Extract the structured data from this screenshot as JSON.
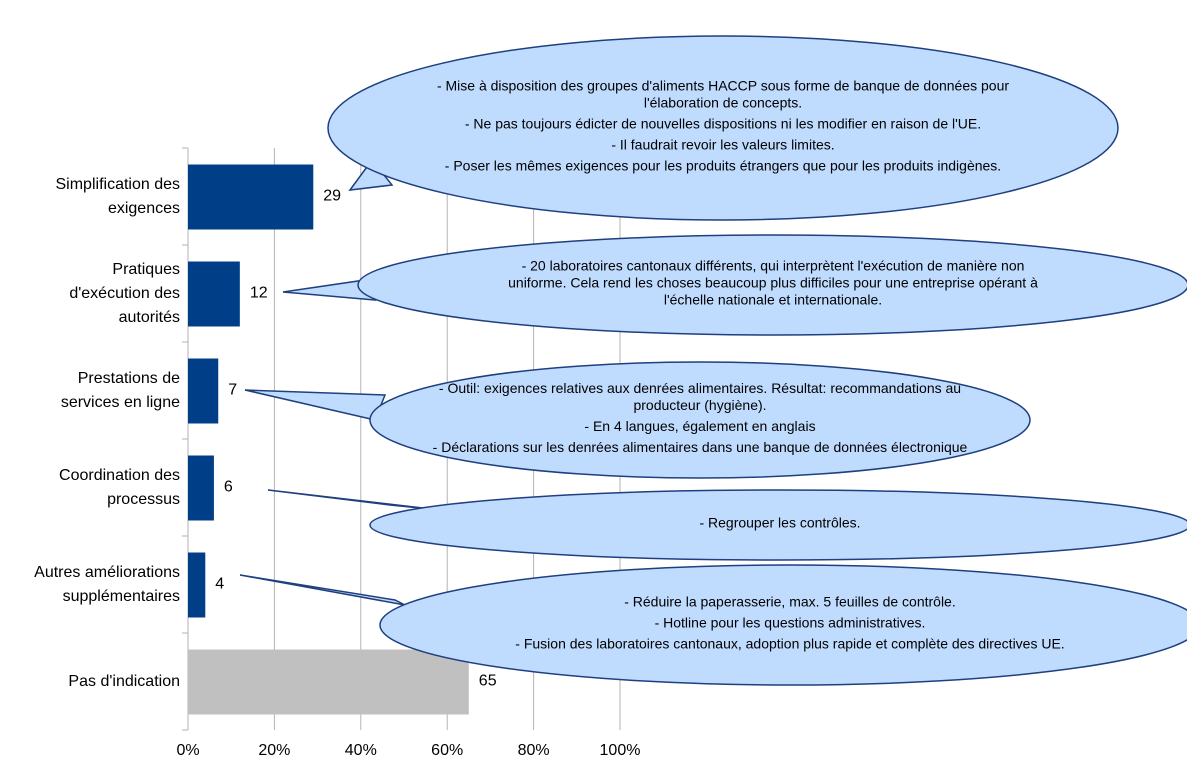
{
  "chart_data": {
    "type": "barh",
    "categories": [
      "Simplification des exigences",
      "Pratiques d'exécution des autorités",
      "Prestations de services en ligne",
      "Coordination des processus",
      "Autres améliorations supplémentaires",
      "Pas d'indication"
    ],
    "values": [
      29,
      12,
      7,
      6,
      4,
      65
    ],
    "colors": [
      "#003f87",
      "#003f87",
      "#003f87",
      "#003f87",
      "#003f87",
      "#c0c0c0"
    ],
    "xlim": [
      0,
      100
    ],
    "xticks": [
      {
        "value": 0,
        "label": "0%"
      },
      {
        "value": 20,
        "label": "20%"
      },
      {
        "value": 40,
        "label": "40%"
      },
      {
        "value": 60,
        "label": "60%"
      },
      {
        "value": 80,
        "label": "80%"
      },
      {
        "value": 100,
        "label": "100%"
      }
    ],
    "grid": true,
    "annotations": [
      {
        "texts": [
          "- Mise à disposition des groupes d'aliments HACCP sous forme de banque de données pour l'élaboration de concepts.",
          "- Ne pas toujours édicter de nouvelles dispositions ni les modifier en raison de l'UE.",
          "- Il faudrait revoir les valeurs limites.",
          "- Poser les mêmes exigences pour les produits étrangers que pour les produits indigènes."
        ]
      },
      {
        "texts": [
          "- 20 laboratoires cantonaux différents, qui interprètent l'exécution de manière non uniforme. Cela rend les choses beaucoup plus difficiles pour une entreprise opérant à l'échelle nationale et internationale."
        ]
      },
      {
        "texts": [
          "- Outil: exigences relatives aux denrées alimentaires. Résultat: recommandations au producteur (hygiène).",
          "- En 4 langues, également en anglais",
          "- Déclarations sur les denrées alimentaires dans une banque de données électronique"
        ]
      },
      {
        "texts": [
          "- Regrouper les contrôles."
        ]
      },
      {
        "texts": [
          "- Réduire la paperasserie, max. 5 feuilles de contrôle.",
          "- Hotline pour les questions administratives.",
          "- Fusion des laboratoires cantonaux, adoption plus rapide et complète des directives UE."
        ]
      }
    ]
  }
}
